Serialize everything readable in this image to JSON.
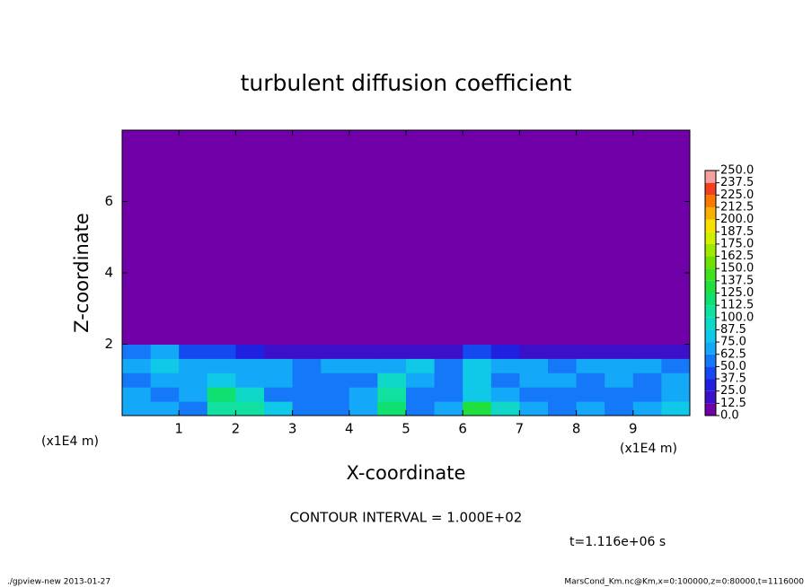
{
  "chart_data": {
    "type": "contour",
    "title": "turbulent diffusion coefficient",
    "xlabel": "X-coordinate",
    "ylabel": "Z-coordinate",
    "x_unit": "(x1E4 m)",
    "xlim": [
      0,
      10
    ],
    "ylim": [
      0,
      8
    ],
    "xticks": [
      1,
      2,
      3,
      4,
      5,
      6,
      7,
      8,
      9
    ],
    "yticks": [
      2,
      4,
      6
    ],
    "x_edges": [
      0,
      0.5,
      1,
      1.5,
      2,
      2.5,
      3,
      3.5,
      4,
      4.5,
      5,
      5.5,
      6,
      6.5,
      7,
      7.5,
      8,
      8.5,
      9,
      9.5,
      10
    ],
    "y_edges": [
      0,
      0.4,
      0.8,
      1.2,
      1.6,
      2.0,
      8.0
    ],
    "z": [
      [
        70,
        65,
        60,
        100,
        110,
        80,
        60,
        55,
        70,
        115,
        60,
        70,
        130,
        90,
        70,
        60,
        65,
        60,
        70,
        75
      ],
      [
        65,
        60,
        70,
        120,
        95,
        60,
        55,
        50,
        65,
        100,
        55,
        60,
        85,
        65,
        60,
        55,
        50,
        55,
        60,
        70
      ],
      [
        60,
        65,
        70,
        75,
        70,
        65,
        55,
        55,
        60,
        90,
        70,
        60,
        75,
        60,
        65,
        70,
        60,
        65,
        60,
        65
      ],
      [
        70,
        75,
        65,
        65,
        70,
        70,
        60,
        65,
        70,
        70,
        75,
        60,
        80,
        70,
        65,
        60,
        65,
        70,
        65,
        60
      ],
      [
        55,
        70,
        45,
        40,
        30,
        20,
        15,
        15,
        15,
        15,
        15,
        15,
        40,
        25,
        20,
        15,
        15,
        15,
        20,
        20
      ],
      [
        0,
        0,
        0,
        0,
        0,
        0,
        0,
        0,
        0,
        0,
        0,
        0,
        0,
        0,
        0,
        0,
        0,
        0,
        0,
        0
      ]
    ],
    "levels": [
      {
        "value": 0,
        "label": "0.0"
      },
      {
        "value": 12.5,
        "label": "12.5"
      },
      {
        "value": 25,
        "label": "25.0"
      },
      {
        "value": 37.5,
        "label": "37.5"
      },
      {
        "value": 50,
        "label": "50.0"
      },
      {
        "value": 62.5,
        "label": "62.5"
      },
      {
        "value": 75,
        "label": "75.0"
      },
      {
        "value": 87.5,
        "label": "87.5"
      },
      {
        "value": 100,
        "label": "100.0"
      },
      {
        "value": 112.5,
        "label": "112.5"
      },
      {
        "value": 125,
        "label": "125.0"
      },
      {
        "value": 137.5,
        "label": "137.5"
      },
      {
        "value": 150,
        "label": "150.0"
      },
      {
        "value": 162.5,
        "label": "162.5"
      },
      {
        "value": 175,
        "label": "175.0"
      },
      {
        "value": 187.5,
        "label": "187.5"
      },
      {
        "value": 200,
        "label": "200.0"
      },
      {
        "value": 212.5,
        "label": "212.5"
      },
      {
        "value": 225,
        "label": "225.0"
      },
      {
        "value": 237.5,
        "label": "237.5"
      },
      {
        "value": 250,
        "label": "250.0"
      }
    ],
    "colors": [
      "#7000a8",
      "#3c10c8",
      "#2020e0",
      "#1448f0",
      "#1478f8",
      "#14a8f8",
      "#10c8e8",
      "#10d8c8",
      "#10e0a0",
      "#10e070",
      "#20e040",
      "#40e020",
      "#70e000",
      "#a0e800",
      "#d0f000",
      "#f8e000",
      "#f8b000",
      "#f87800",
      "#f04020",
      "#f8a0a0"
    ],
    "contour_interval": "CONTOUR INTERVAL = 1.000E+02",
    "time": "t=1.116e+06 s",
    "footer_left": "./gpview-new  2013-01-27",
    "footer_right": "MarsCond_Km.nc@Km,x=0:100000,z=0:80000,t=1116000"
  }
}
